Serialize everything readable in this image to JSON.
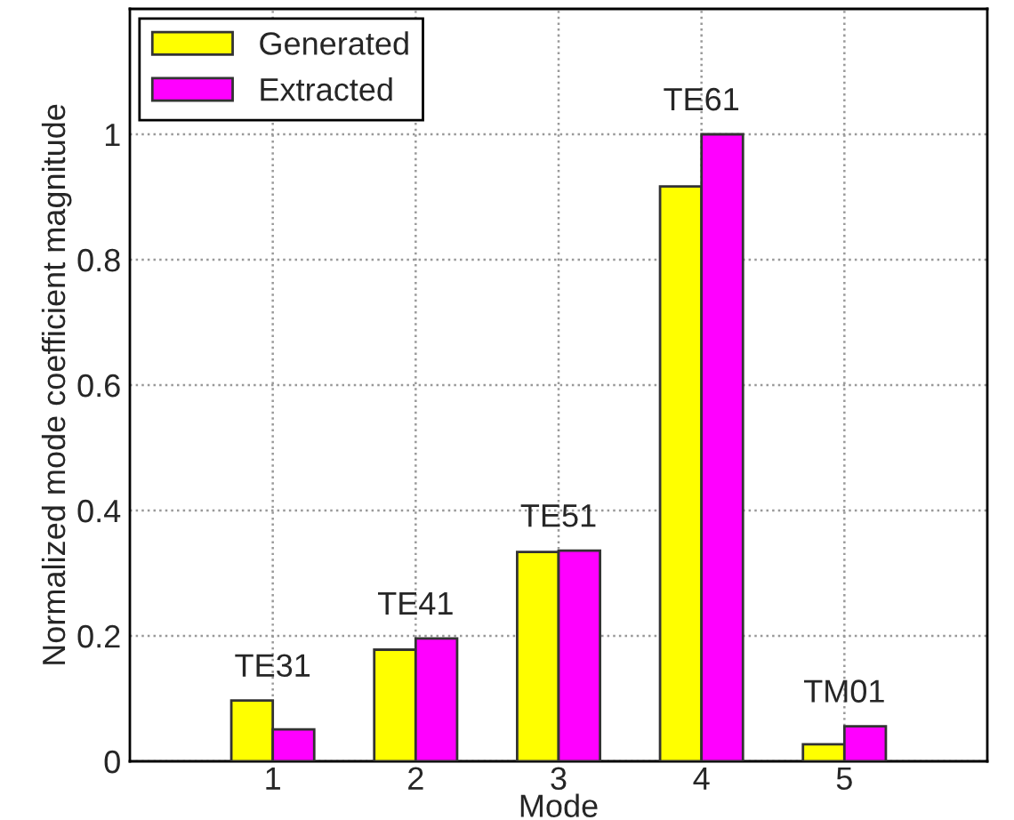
{
  "chart_data": {
    "type": "bar",
    "xlabel": "Mode",
    "ylabel": "Normalized mode coefficient magnitude",
    "x": [
      1,
      2,
      3,
      4,
      5
    ],
    "xlim": [
      0,
      6
    ],
    "xticks": [
      1,
      2,
      3,
      4,
      5
    ],
    "ylim": [
      0,
      1.2
    ],
    "yticks": [
      0,
      0.2,
      0.4,
      0.6,
      0.8,
      1
    ],
    "series": [
      {
        "name": "Generated",
        "color": "#ffff00",
        "values": [
          0.097,
          0.178,
          0.334,
          0.917,
          0.027
        ]
      },
      {
        "name": "Extracted",
        "color": "#ff00ff",
        "values": [
          0.051,
          0.196,
          0.336,
          1.0,
          0.056
        ]
      }
    ],
    "annotations": [
      {
        "text": "TE31",
        "x": 1,
        "y": 0.097
      },
      {
        "text": "TE41",
        "x": 2,
        "y": 0.196
      },
      {
        "text": "TE51",
        "x": 3,
        "y": 0.336
      },
      {
        "text": "TE61",
        "x": 4,
        "y": 1.0
      },
      {
        "text": "TM01",
        "x": 5,
        "y": 0.056
      }
    ],
    "grid": true,
    "legend": "top left"
  }
}
